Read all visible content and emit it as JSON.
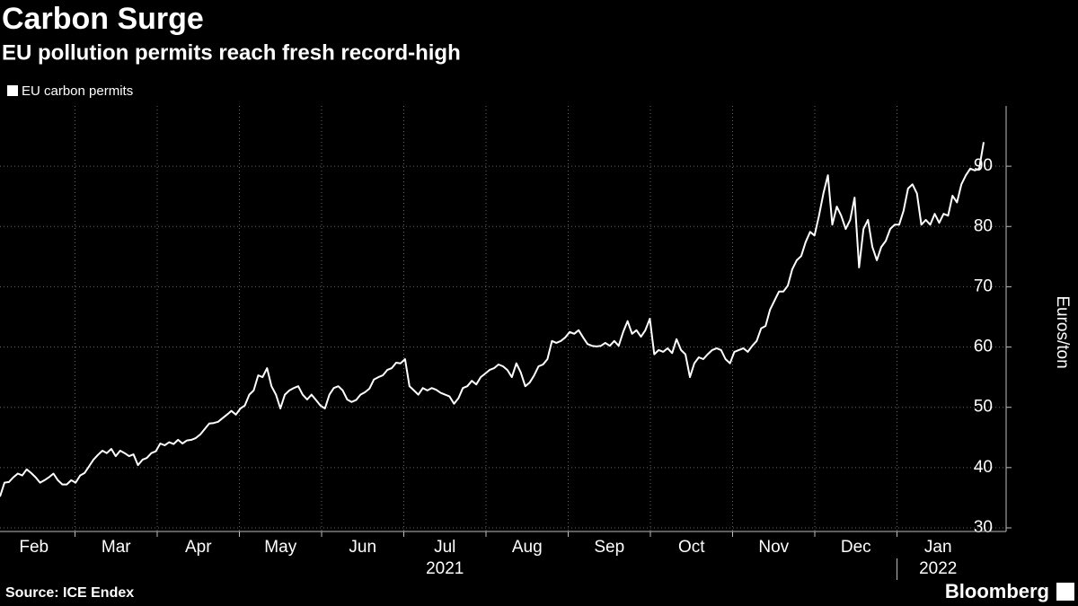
{
  "chart_data": {
    "type": "line",
    "title": "Carbon Surge",
    "subtitle": "EU pollution permits reach fresh record-high",
    "source": "Source: ICE Endex",
    "brand": "Bloomberg",
    "y_label": "Euros/ton",
    "months": [
      "Feb",
      "Mar",
      "Apr",
      "May",
      "Jun",
      "Jul",
      "Aug",
      "Sep",
      "Oct",
      "Nov",
      "Dec",
      "Jan"
    ],
    "years": [
      "2021",
      "2022"
    ],
    "ylim": [
      29.4,
      100
    ],
    "yticks": [
      30,
      40,
      50,
      60,
      70,
      80,
      90
    ],
    "grid": true,
    "series": [
      {
        "name": "EU carbon permits",
        "color": "#ffffff",
        "values": [
          35.2,
          37.5,
          37.6,
          38.4,
          39.0,
          38.7,
          39.7,
          39.1,
          38.4,
          37.5,
          37.9,
          38.4,
          39.0,
          37.9,
          37.2,
          37.2,
          37.9,
          37.5,
          38.7,
          39.1,
          40.2,
          41.3,
          42.1,
          42.8,
          42.4,
          43.1,
          41.9,
          42.8,
          42.4,
          41.9,
          42.2,
          40.4,
          41.3,
          41.6,
          42.4,
          42.7,
          44.0,
          43.7,
          44.2,
          43.9,
          44.6,
          44.0,
          44.5,
          44.6,
          44.9,
          45.5,
          46.4,
          47.3,
          47.4,
          47.6,
          48.2,
          48.8,
          49.4,
          48.8,
          49.8,
          50.3,
          52.1,
          52.8,
          55.3,
          55.0,
          56.5,
          53.5,
          52.1,
          49.8,
          52.1,
          52.8,
          53.2,
          53.5,
          52.1,
          51.3,
          52.1,
          51.2,
          50.3,
          49.8,
          52.1,
          53.2,
          53.5,
          52.8,
          51.3,
          50.9,
          51.2,
          52.1,
          52.5,
          53.1,
          54.6,
          55.0,
          55.3,
          56.2,
          56.5,
          57.4,
          57.3,
          58.0,
          53.5,
          52.8,
          52.1,
          53.2,
          52.8,
          53.2,
          52.9,
          52.4,
          52.1,
          51.8,
          50.6,
          51.5,
          53.2,
          53.5,
          54.4,
          53.8,
          55.0,
          55.6,
          56.2,
          56.5,
          57.1,
          56.8,
          56.2,
          55.0,
          57.3,
          55.8,
          53.5,
          54.1,
          55.3,
          56.8,
          57.1,
          58.0,
          61.0,
          60.7,
          61.0,
          61.6,
          62.5,
          62.2,
          62.8,
          61.6,
          60.5,
          60.2,
          60.1,
          60.2,
          60.7,
          60.2,
          61.0,
          60.2,
          62.5,
          64.3,
          62.2,
          62.8,
          61.7,
          62.8,
          64.7,
          58.8,
          59.5,
          59.2,
          59.8,
          59.0,
          61.3,
          59.5,
          58.8,
          55.0,
          57.3,
          58.3,
          58.0,
          58.8,
          59.5,
          59.8,
          59.5,
          58.0,
          57.3,
          59.2,
          59.5,
          59.8,
          59.2,
          60.2,
          61.0,
          63.1,
          63.5,
          66.2,
          67.7,
          69.2,
          69.2,
          70.2,
          72.9,
          74.4,
          75.1,
          77.4,
          79.1,
          78.5,
          81.8,
          85.5,
          88.5,
          80.3,
          83.3,
          81.8,
          79.6,
          81.1,
          84.8,
          73.2,
          79.6,
          81.1,
          76.6,
          74.4,
          76.6,
          77.6,
          79.6,
          80.3,
          80.3,
          82.6,
          86.3,
          87.0,
          85.5,
          80.3,
          81.1,
          80.3,
          82.1,
          80.6,
          82.1,
          81.8,
          85.1,
          84.0,
          87.0,
          88.5,
          89.6,
          89.3,
          89.6,
          94.0
        ]
      }
    ]
  }
}
